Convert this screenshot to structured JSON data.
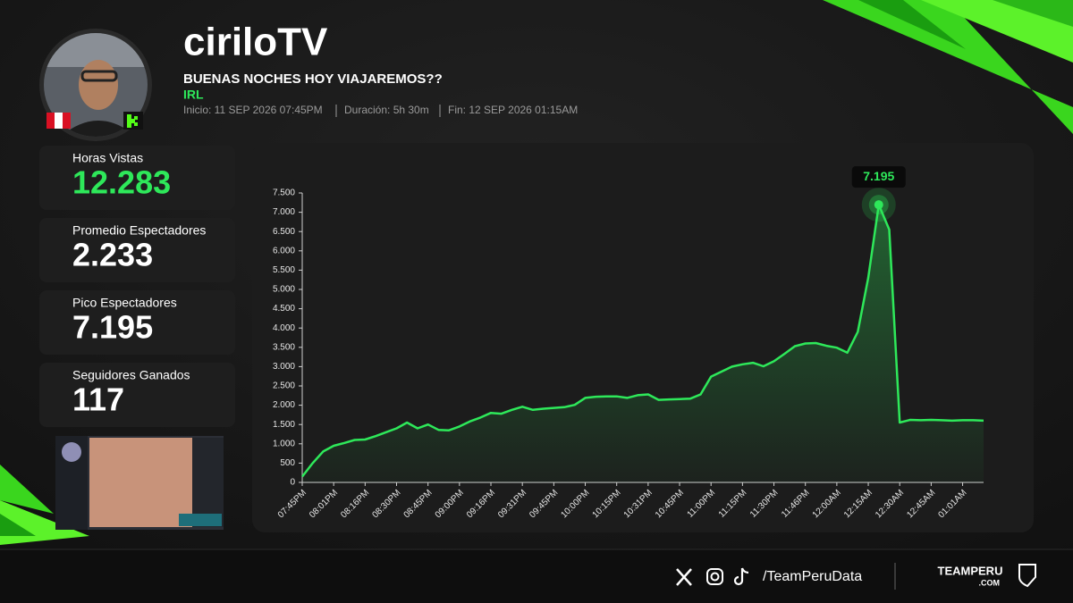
{
  "header": {
    "name": "ciriloTV",
    "stream_title": "BUENAS NOCHES HOY VIAJAREMOS??",
    "category": "IRL",
    "start": "Inicio: 11 SEP 2026 07:45PM",
    "duration": "Duración: 5h 30m",
    "end": "Fin: 12 SEP 2026 01:15AM"
  },
  "stats": [
    {
      "label": "Horas Vistas",
      "value": "12.283"
    },
    {
      "label": "Promedio Espectadores",
      "value": "2.233"
    },
    {
      "label": "Pico Espectadores",
      "value": "7.195"
    },
    {
      "label": "Seguidores Ganados",
      "value": "117"
    }
  ],
  "chart_data": {
    "type": "line",
    "color": "#2ee85a",
    "peak_label": "7.195",
    "categories": [
      "07:45PM",
      null,
      null,
      "08:01PM",
      null,
      null,
      "08:16PM",
      null,
      null,
      "08:30PM",
      null,
      null,
      "08:45PM",
      null,
      null,
      "09:00PM",
      null,
      null,
      "09:16PM",
      null,
      null,
      "09:31PM",
      null,
      null,
      "09:45PM",
      null,
      null,
      "10:00PM",
      null,
      null,
      "10:15PM",
      null,
      null,
      "10:31PM",
      null,
      null,
      "10:45PM",
      null,
      null,
      "11:00PM",
      null,
      null,
      "11:15PM",
      null,
      null,
      "11:30PM",
      null,
      null,
      "11:46PM",
      null,
      null,
      "12:00AM",
      null,
      null,
      "12:15AM",
      null,
      null,
      "12:30AM",
      null,
      null,
      "12:45AM",
      null,
      null,
      "01:01AM",
      null,
      null
    ],
    "values": [
      150,
      500,
      800,
      950,
      1020,
      1100,
      1110,
      1200,
      1300,
      1400,
      1550,
      1400,
      1500,
      1360,
      1350,
      1450,
      1580,
      1680,
      1800,
      1780,
      1880,
      1960,
      1880,
      1910,
      1930,
      1950,
      2010,
      2190,
      2220,
      2230,
      2230,
      2190,
      2260,
      2280,
      2140,
      2150,
      2160,
      2170,
      2280,
      2740,
      2870,
      3000,
      3060,
      3100,
      3010,
      3140,
      3330,
      3530,
      3600,
      3610,
      3540,
      3490,
      3360,
      3900,
      5300,
      7195,
      6550,
      1550,
      1620,
      1610,
      1620,
      1610,
      1600,
      1610,
      1610,
      1600
    ],
    "ylim": [
      0,
      7500
    ],
    "yticks": [
      0,
      500,
      {
        "value": 1000,
        "label": "1.000"
      },
      {
        "value": 1500,
        "label": "1.500"
      },
      {
        "value": 2000,
        "label": "2.000"
      },
      {
        "value": 2500,
        "label": "2.500"
      },
      {
        "value": 3000,
        "label": "3.000"
      },
      {
        "value": 3500,
        "label": "3.500"
      },
      {
        "value": 4000,
        "label": "4.000"
      },
      {
        "value": 4500,
        "label": "4.500"
      },
      {
        "value": 5000,
        "label": "5.000"
      },
      {
        "value": 5500,
        "label": "5.500"
      },
      {
        "value": 6000,
        "label": "6.000"
      },
      {
        "value": 6500,
        "label": "6.500"
      },
      {
        "value": 7000,
        "label": "7.000"
      },
      {
        "value": 7500,
        "label": "7.500"
      }
    ]
  },
  "footer": {
    "handle": "/TeamPeruData",
    "brand": "TEAMPERU",
    "brand_suffix": ".COM"
  }
}
